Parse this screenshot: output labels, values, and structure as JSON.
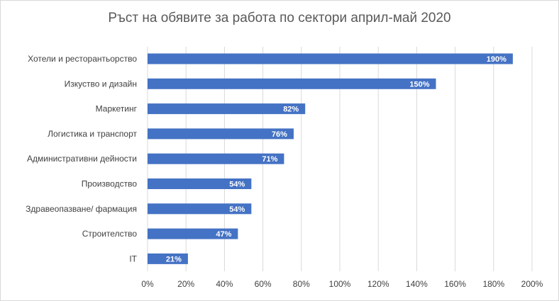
{
  "chart_data": {
    "type": "bar",
    "orientation": "horizontal",
    "title": "Ръст на обявите за работа по сектори април-май 2020",
    "categories": [
      "Хотели и ресторантьорство",
      "Изкуство и дизайн",
      "Маркетинг",
      "Логистика и транспорт",
      "Административни дейности",
      "Производство",
      "Здравеопазване/ фармация",
      "Строителство",
      "IT"
    ],
    "values": [
      190,
      150,
      82,
      76,
      71,
      54,
      54,
      47,
      21
    ],
    "data_labels": [
      "190%",
      "150%",
      "82%",
      "76%",
      "71%",
      "54%",
      "54%",
      "47%",
      "21%"
    ],
    "xlim": [
      0,
      200
    ],
    "x_ticks": [
      0,
      20,
      40,
      60,
      80,
      100,
      120,
      140,
      160,
      180,
      200
    ],
    "x_tick_labels": [
      "0%",
      "20%",
      "40%",
      "60%",
      "80%",
      "100%",
      "120%",
      "140%",
      "160%",
      "180%",
      "200%"
    ],
    "grid": true,
    "bar_color": "#4472c4",
    "legend": "none"
  }
}
